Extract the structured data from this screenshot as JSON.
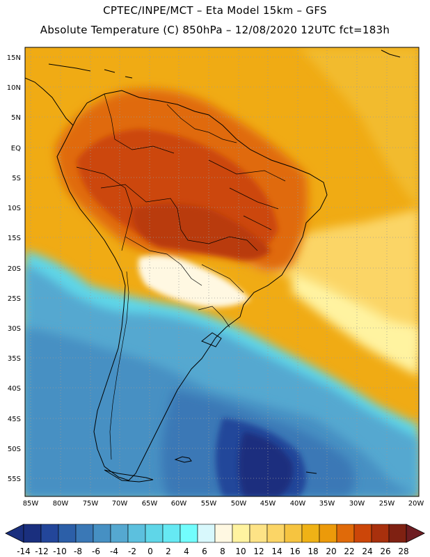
{
  "header": {
    "line1": "CPTEC/INPE/MCT –  Eta Model 15km – GFS",
    "line2": "Absolute Temperature (C) 850hPa – 12/08/2020 12UTC fct=183h"
  },
  "map": {
    "lat_labels": [
      "15N",
      "10N",
      "5N",
      "EQ",
      "5S",
      "10S",
      "15S",
      "20S",
      "25S",
      "30S",
      "35S",
      "40S",
      "45S",
      "50S",
      "55S"
    ],
    "lon_labels": [
      "85W",
      "80W",
      "75W",
      "70W",
      "65W",
      "60W",
      "55W",
      "50W",
      "45W",
      "40W",
      "35W",
      "30W",
      "25W",
      "20W"
    ],
    "lat_range": [
      17,
      -57.5
    ],
    "lon_range": [
      -86,
      -19.5
    ]
  },
  "colorbar": {
    "labels": [
      "-14",
      "-12",
      "-10",
      "-8",
      "-6",
      "-4",
      "-2",
      "0",
      "2",
      "4",
      "6",
      "8",
      "10",
      "12",
      "14",
      "16",
      "18",
      "20",
      "22",
      "24",
      "26",
      "28"
    ],
    "colors": [
      "#1a2f7e",
      "#23469a",
      "#2c5fa8",
      "#3a78b6",
      "#4690c3",
      "#55a8d0",
      "#5cc0de",
      "#5fd6e8",
      "#66e9f3",
      "#72fdfd",
      "#d8f8fc",
      "#fff8e2",
      "#fff3a0",
      "#fde386",
      "#fbd566",
      "#f6c440",
      "#efb216",
      "#ec9a0a",
      "#e06a09",
      "#cc4609",
      "#a8300d",
      "#7f2112"
    ]
  }
}
